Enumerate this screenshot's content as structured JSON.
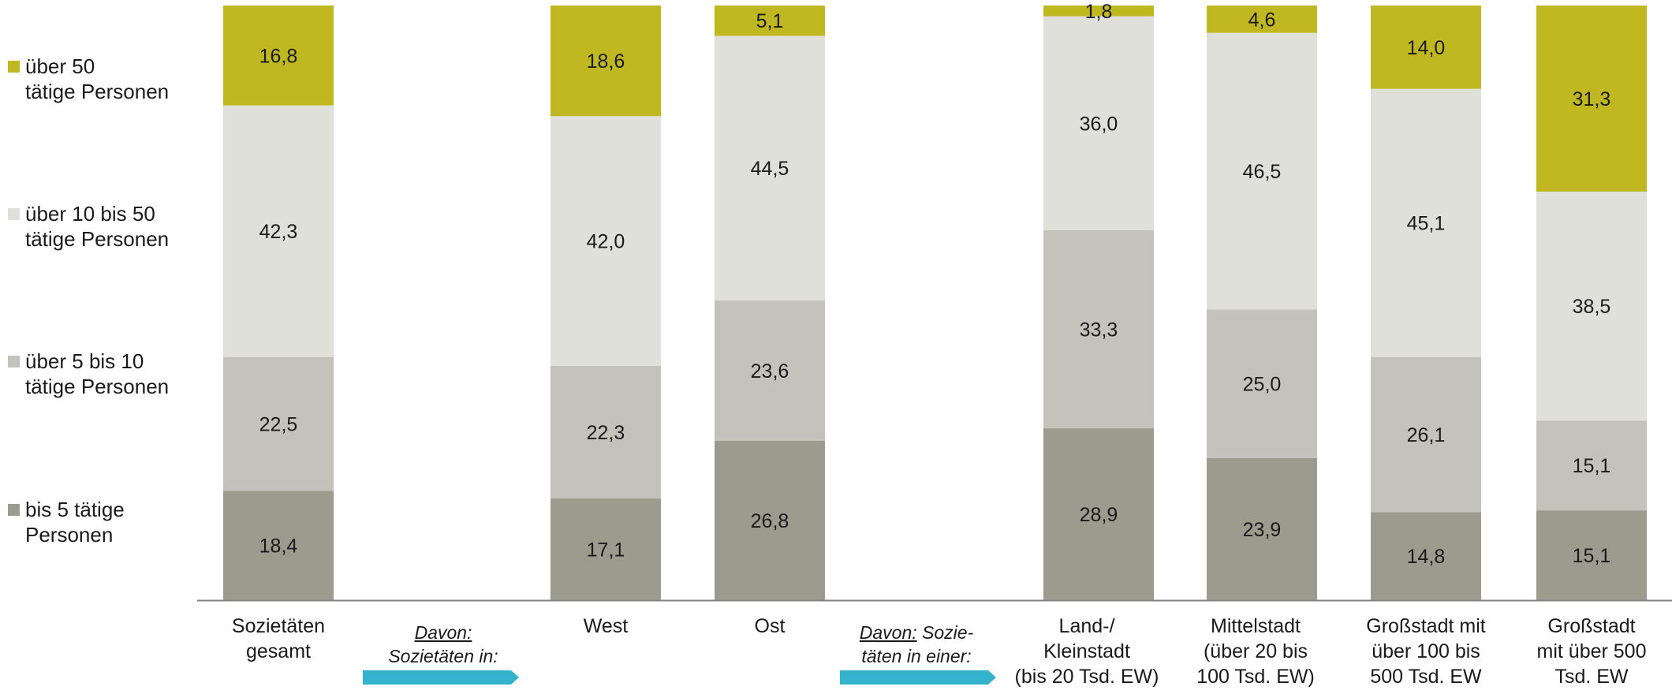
{
  "colors": {
    "bis5": "#9b9c8d",
    "5bis10": "#c3c3bb",
    "10bis50": "#e0e0da",
    "ueber50": "#bfb820",
    "arrow": "#35b3cc",
    "axis": "#808080"
  },
  "legend": [
    {
      "label": "über 50\ntätige Personen",
      "color_key": "ueber50"
    },
    {
      "label": "über 10 bis 50\ntätige Personen",
      "color_key": "10bis50"
    },
    {
      "label": "über 5 bis 10\ntätige Personen",
      "color_key": "5bis10"
    },
    {
      "label": "bis 5 tätige\nPersonen",
      "color_key": "bis5"
    }
  ],
  "davon": [
    {
      "prefix": "Davon:",
      "rest": "Sozietäten in:"
    },
    {
      "prefix": "Davon:",
      "rest": " Sozie-\ntäten in einer:"
    }
  ],
  "chart_data": {
    "type": "bar",
    "stacked": true,
    "categories": [
      "Sozietäten\ngesamt",
      "West",
      "Ost",
      "Land-/\nKleinstadt\n(bis 20 Tsd. EW)",
      "Mittelstadt\n(über 20 bis\n100 Tsd. EW)",
      "Großstadt mit\nüber 100 bis\n500 Tsd. EW",
      "Großstadt\nmit über 500\nTsd. EW"
    ],
    "series": [
      {
        "name": "bis 5 tätige Personen",
        "color_key": "bis5",
        "values": [
          18.4,
          17.1,
          26.8,
          28.9,
          23.9,
          14.8,
          15.1
        ],
        "labels": [
          "18,4",
          "17,1",
          "26,8",
          "28,9",
          "23,9",
          "14,8",
          "15,1"
        ]
      },
      {
        "name": "über 5 bis 10 tätige Personen",
        "color_key": "5bis10",
        "values": [
          22.5,
          22.3,
          23.6,
          33.3,
          25.0,
          26.1,
          15.1
        ],
        "labels": [
          "22,5",
          "22,3",
          "23,6",
          "33,3",
          "25,0",
          "26,1",
          "15,1"
        ]
      },
      {
        "name": "über 10 bis 50 tätige Personen",
        "color_key": "10bis50",
        "values": [
          42.3,
          42.0,
          44.5,
          36.0,
          46.5,
          45.1,
          38.5
        ],
        "labels": [
          "42,3",
          "42,0",
          "44,5",
          "36,0",
          "46,5",
          "45,1",
          "38,5"
        ]
      },
      {
        "name": "über 50 tätige Personen",
        "color_key": "ueber50",
        "values": [
          16.8,
          18.6,
          5.1,
          1.8,
          4.6,
          14.0,
          31.3
        ],
        "labels": [
          "16,8",
          "18,6",
          "5,1",
          "1,8",
          "4,6",
          "14,0",
          "31,3"
        ]
      }
    ],
    "ylim": [
      0,
      100
    ],
    "grid": false,
    "legend_position": "left"
  }
}
